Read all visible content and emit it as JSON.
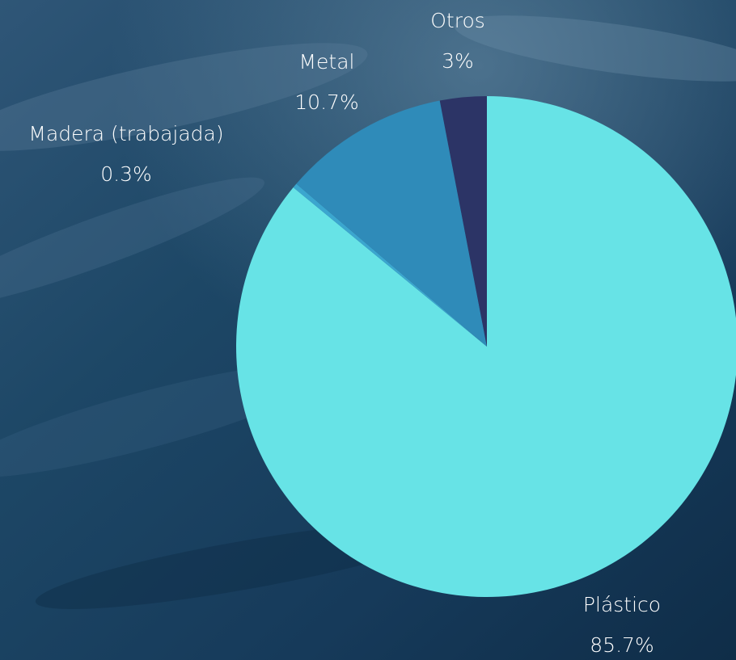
{
  "chart_data": {
    "type": "pie",
    "categories": [
      "Plástico",
      "Madera (trabajada)",
      "Metal",
      "Otros"
    ],
    "values": [
      85.7,
      0.3,
      10.7,
      3
    ],
    "value_labels": [
      "85.7%",
      "0.3%",
      "10.7%",
      "3%"
    ],
    "colors": [
      "#67e3e6",
      "#3ba6cf",
      "#2f8bb9",
      "#2c3466"
    ]
  }
}
